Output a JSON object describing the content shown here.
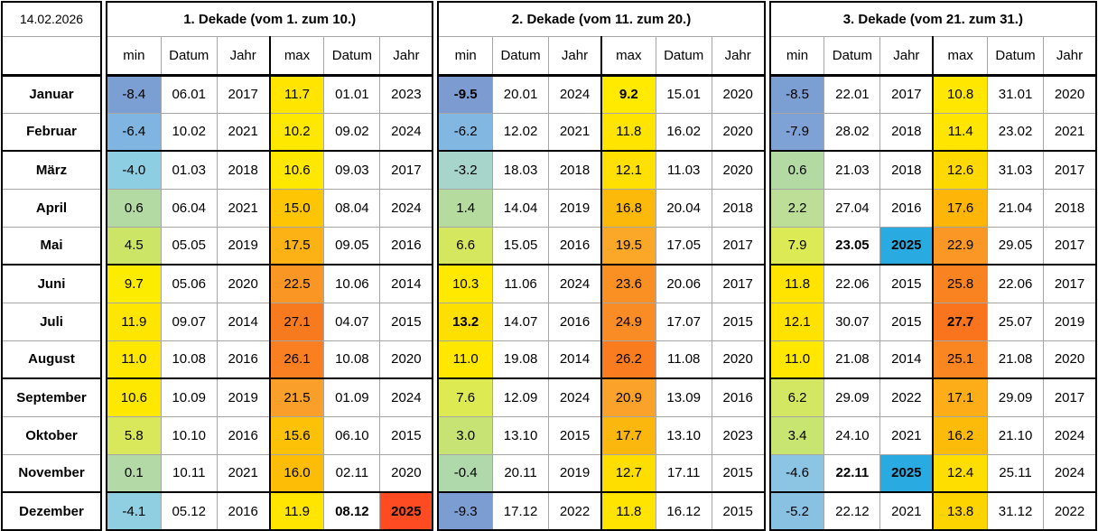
{
  "header": {
    "date_label": "14.02.2026",
    "sections": [
      "1. Dekade (vom 1. zum 10.)",
      "2. Dekade (vom 11. zum 20.)",
      "3. Dekade (vom 21. zum 31.)"
    ],
    "subcolumns": [
      "min",
      "Datum",
      "Jahr",
      "max",
      "Datum",
      "Jahr"
    ]
  },
  "colors": {
    "record_year_red": "#FF4B21",
    "record_year_blue": "#29ABE2",
    "grid_line": "#a6a6a6",
    "border": "#000000"
  },
  "rows": [
    {
      "month": "Januar",
      "d": [
        [
          {
            "v": "-8.4",
            "bg": "#7C9FD3"
          },
          {
            "v": "06.01"
          },
          {
            "v": "2017"
          },
          {
            "v": "11.7",
            "bg": "#FFE500"
          },
          {
            "v": "01.01"
          },
          {
            "v": "2023"
          }
        ],
        [
          {
            "v": "-9.5",
            "bg": "#7C9CD1",
            "b": true
          },
          {
            "v": "20.01"
          },
          {
            "v": "2024"
          },
          {
            "v": "9.2",
            "bg": "#FFEA00",
            "b": true
          },
          {
            "v": "15.01"
          },
          {
            "v": "2020"
          }
        ],
        [
          {
            "v": "-8.5",
            "bg": "#7C9FD3"
          },
          {
            "v": "22.01"
          },
          {
            "v": "2017"
          },
          {
            "v": "10.8",
            "bg": "#FFE700"
          },
          {
            "v": "31.01"
          },
          {
            "v": "2020"
          }
        ]
      ]
    },
    {
      "month": "Februar",
      "d": [
        [
          {
            "v": "-6.4",
            "bg": "#7FB5E0"
          },
          {
            "v": "10.02"
          },
          {
            "v": "2021"
          },
          {
            "v": "10.2",
            "bg": "#FFE800"
          },
          {
            "v": "09.02"
          },
          {
            "v": "2024"
          }
        ],
        [
          {
            "v": "-6.2",
            "bg": "#82B7E1"
          },
          {
            "v": "12.02"
          },
          {
            "v": "2021"
          },
          {
            "v": "11.8",
            "bg": "#FFE400"
          },
          {
            "v": "16.02"
          },
          {
            "v": "2020"
          }
        ],
        [
          {
            "v": "-7.9",
            "bg": "#7EA2D5"
          },
          {
            "v": "28.02"
          },
          {
            "v": "2018"
          },
          {
            "v": "11.4",
            "bg": "#FFE500"
          },
          {
            "v": "23.02"
          },
          {
            "v": "2021"
          }
        ]
      ]
    },
    {
      "month": "März",
      "d": [
        [
          {
            "v": "-4.0",
            "bg": "#8DCEE2"
          },
          {
            "v": "01.03"
          },
          {
            "v": "2018"
          },
          {
            "v": "10.6",
            "bg": "#FFE800"
          },
          {
            "v": "09.03"
          },
          {
            "v": "2017"
          }
        ],
        [
          {
            "v": "-3.2",
            "bg": "#A7D5CC"
          },
          {
            "v": "18.03"
          },
          {
            "v": "2018"
          },
          {
            "v": "12.1",
            "bg": "#FFE000"
          },
          {
            "v": "11.03"
          },
          {
            "v": "2020"
          }
        ],
        [
          {
            "v": "0.6",
            "bg": "#B3DAA3"
          },
          {
            "v": "21.03"
          },
          {
            "v": "2018"
          },
          {
            "v": "12.6",
            "bg": "#FED900"
          },
          {
            "v": "31.03"
          },
          {
            "v": "2017"
          }
        ]
      ]
    },
    {
      "month": "April",
      "d": [
        [
          {
            "v": "0.6",
            "bg": "#B3DAA3"
          },
          {
            "v": "06.04"
          },
          {
            "v": "2021"
          },
          {
            "v": "15.0",
            "bg": "#FDC503"
          },
          {
            "v": "08.04"
          },
          {
            "v": "2024"
          }
        ],
        [
          {
            "v": "1.4",
            "bg": "#B5DB9F"
          },
          {
            "v": "14.04"
          },
          {
            "v": "2019"
          },
          {
            "v": "16.8",
            "bg": "#FDB90A"
          },
          {
            "v": "20.04"
          },
          {
            "v": "2018"
          }
        ],
        [
          {
            "v": "2.2",
            "bg": "#BCDE97"
          },
          {
            "v": "27.04"
          },
          {
            "v": "2016"
          },
          {
            "v": "17.6",
            "bg": "#FDB508"
          },
          {
            "v": "21.04"
          },
          {
            "v": "2018"
          }
        ]
      ]
    },
    {
      "month": "Mai",
      "d": [
        [
          {
            "v": "4.5",
            "bg": "#CDE566"
          },
          {
            "v": "05.05"
          },
          {
            "v": "2019"
          },
          {
            "v": "17.5",
            "bg": "#FCB214"
          },
          {
            "v": "09.05"
          },
          {
            "v": "2016"
          }
        ],
        [
          {
            "v": "6.6",
            "bg": "#D5E75F"
          },
          {
            "v": "15.05"
          },
          {
            "v": "2016"
          },
          {
            "v": "19.5",
            "bg": "#FBA727"
          },
          {
            "v": "17.05"
          },
          {
            "v": "2017"
          }
        ],
        [
          {
            "v": "7.9",
            "bg": "#DCEA55"
          },
          {
            "v": "23.05",
            "b": true
          },
          {
            "v": "2025",
            "b": true,
            "bg": "#29ABE2"
          },
          {
            "v": "22.9",
            "bg": "#FB9825"
          },
          {
            "v": "29.05"
          },
          {
            "v": "2017"
          }
        ]
      ]
    },
    {
      "month": "Juni",
      "d": [
        [
          {
            "v": "9.7",
            "bg": "#FBEC00"
          },
          {
            "v": "05.06"
          },
          {
            "v": "2020"
          },
          {
            "v": "22.5",
            "bg": "#FA9724"
          },
          {
            "v": "10.06"
          },
          {
            "v": "2014"
          }
        ],
        [
          {
            "v": "10.3",
            "bg": "#FFE900"
          },
          {
            "v": "11.06"
          },
          {
            "v": "2024"
          },
          {
            "v": "23.6",
            "bg": "#FA9023"
          },
          {
            "v": "20.06"
          },
          {
            "v": "2017"
          }
        ],
        [
          {
            "v": "11.8",
            "bg": "#FFE400"
          },
          {
            "v": "22.06"
          },
          {
            "v": "2015"
          },
          {
            "v": "25.8",
            "bg": "#F98221"
          },
          {
            "v": "22.06"
          },
          {
            "v": "2017"
          }
        ]
      ]
    },
    {
      "month": "Juli",
      "d": [
        [
          {
            "v": "11.9",
            "bg": "#FFE600"
          },
          {
            "v": "09.07"
          },
          {
            "v": "2014"
          },
          {
            "v": "27.1",
            "bg": "#F87A1E"
          },
          {
            "v": "04.07"
          },
          {
            "v": "2015"
          }
        ],
        [
          {
            "v": "13.2",
            "bg": "#FEE000",
            "b": true
          },
          {
            "v": "14.07"
          },
          {
            "v": "2016"
          },
          {
            "v": "24.9",
            "bg": "#FA8C26"
          },
          {
            "v": "17.07"
          },
          {
            "v": "2015"
          }
        ],
        [
          {
            "v": "12.1",
            "bg": "#FFE200"
          },
          {
            "v": "30.07"
          },
          {
            "v": "2015"
          },
          {
            "v": "27.7",
            "bg": "#F9741C",
            "b": true
          },
          {
            "v": "25.07"
          },
          {
            "v": "2019"
          }
        ]
      ]
    },
    {
      "month": "August",
      "d": [
        [
          {
            "v": "11.0",
            "bg": "#FFE700"
          },
          {
            "v": "10.08"
          },
          {
            "v": "2016"
          },
          {
            "v": "26.1",
            "bg": "#F97F20"
          },
          {
            "v": "10.08"
          },
          {
            "v": "2020"
          }
        ],
        [
          {
            "v": "11.0",
            "bg": "#FFE700"
          },
          {
            "v": "19.08"
          },
          {
            "v": "2014"
          },
          {
            "v": "26.2",
            "bg": "#F97C1F"
          },
          {
            "v": "11.08"
          },
          {
            "v": "2020"
          }
        ],
        [
          {
            "v": "11.0",
            "bg": "#FFE700"
          },
          {
            "v": "21.08"
          },
          {
            "v": "2014"
          },
          {
            "v": "25.1",
            "bg": "#F98620"
          },
          {
            "v": "21.08"
          },
          {
            "v": "2020"
          }
        ]
      ]
    },
    {
      "month": "September",
      "d": [
        [
          {
            "v": "10.6",
            "bg": "#FFE800"
          },
          {
            "v": "10.09"
          },
          {
            "v": "2019"
          },
          {
            "v": "21.5",
            "bg": "#FA9F2A"
          },
          {
            "v": "01.09"
          },
          {
            "v": "2024"
          }
        ],
        [
          {
            "v": "7.6",
            "bg": "#DEEA52"
          },
          {
            "v": "12.09"
          },
          {
            "v": "2024"
          },
          {
            "v": "20.9",
            "bg": "#FBA22B"
          },
          {
            "v": "13.09"
          },
          {
            "v": "2016"
          }
        ],
        [
          {
            "v": "6.2",
            "bg": "#D4E763"
          },
          {
            "v": "29.09"
          },
          {
            "v": "2022"
          },
          {
            "v": "17.1",
            "bg": "#FCAD18"
          },
          {
            "v": "29.09"
          },
          {
            "v": "2017"
          }
        ]
      ]
    },
    {
      "month": "Oktober",
      "d": [
        [
          {
            "v": "5.8",
            "bg": "#D9E85B"
          },
          {
            "v": "10.10"
          },
          {
            "v": "2016"
          },
          {
            "v": "15.6",
            "bg": "#FDC107"
          },
          {
            "v": "06.10"
          },
          {
            "v": "2015"
          }
        ],
        [
          {
            "v": "3.0",
            "bg": "#C6E374"
          },
          {
            "v": "13.10"
          },
          {
            "v": "2015"
          },
          {
            "v": "17.7",
            "bg": "#FCB70E"
          },
          {
            "v": "13.10"
          },
          {
            "v": "2023"
          }
        ],
        [
          {
            "v": "3.4",
            "bg": "#C8E471"
          },
          {
            "v": "24.10"
          },
          {
            "v": "2021"
          },
          {
            "v": "16.2",
            "bg": "#FCBB08"
          },
          {
            "v": "21.10"
          },
          {
            "v": "2024"
          }
        ]
      ]
    },
    {
      "month": "November",
      "d": [
        [
          {
            "v": "0.1",
            "bg": "#B2D9A6"
          },
          {
            "v": "10.11"
          },
          {
            "v": "2021"
          },
          {
            "v": "16.0",
            "bg": "#FDBD06"
          },
          {
            "v": "02.11"
          },
          {
            "v": "2020"
          }
        ],
        [
          {
            "v": "-0.4",
            "bg": "#AFD8AB"
          },
          {
            "v": "20.11"
          },
          {
            "v": "2019"
          },
          {
            "v": "12.7",
            "bg": "#FEDD00"
          },
          {
            "v": "17.11"
          },
          {
            "v": "2015"
          }
        ],
        [
          {
            "v": "-4.6",
            "bg": "#8BC5E3"
          },
          {
            "v": "22.11",
            "b": true
          },
          {
            "v": "2025",
            "b": true,
            "bg": "#29ABE2"
          },
          {
            "v": "12.4",
            "bg": "#FEDD00"
          },
          {
            "v": "25.11"
          },
          {
            "v": "2024"
          }
        ]
      ]
    },
    {
      "month": "Dezember",
      "d": [
        [
          {
            "v": "-4.1",
            "bg": "#90CFE1"
          },
          {
            "v": "05.12"
          },
          {
            "v": "2016"
          },
          {
            "v": "11.9",
            "bg": "#FFE500"
          },
          {
            "v": "08.12",
            "b": true
          },
          {
            "v": "2025",
            "b": true,
            "bg": "#FF4B21"
          }
        ],
        [
          {
            "v": "-9.3",
            "bg": "#7C9DD2"
          },
          {
            "v": "17.12"
          },
          {
            "v": "2022"
          },
          {
            "v": "11.8",
            "bg": "#FFE400"
          },
          {
            "v": "16.12"
          },
          {
            "v": "2015"
          }
        ],
        [
          {
            "v": "-5.2",
            "bg": "#89C1E3"
          },
          {
            "v": "22.12"
          },
          {
            "v": "2021"
          },
          {
            "v": "13.8",
            "bg": "#FDD400"
          },
          {
            "v": "31.12"
          },
          {
            "v": "2022"
          }
        ]
      ]
    }
  ]
}
